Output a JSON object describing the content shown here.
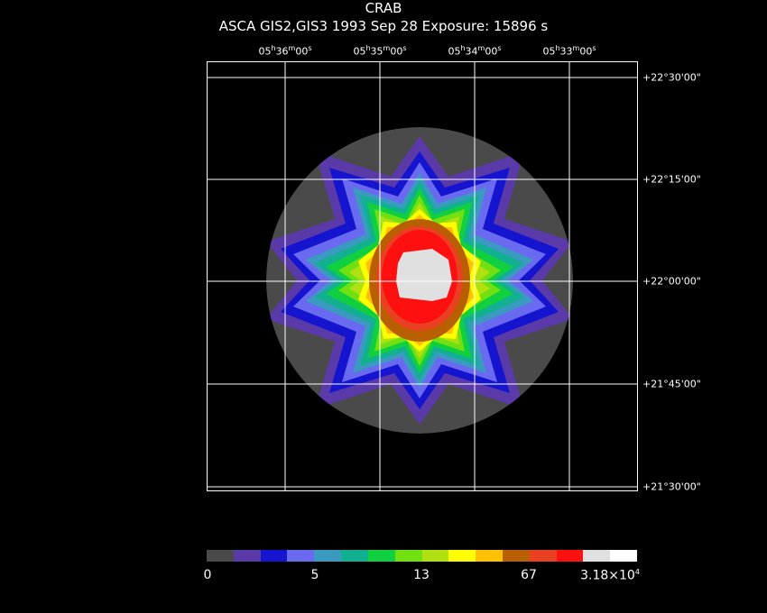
{
  "header": {
    "title": "CRAB",
    "subtitle": "ASCA GIS2,GIS3    1993 Sep 28    Exposure: 15896 s"
  },
  "axes": {
    "ra_labels": [
      {
        "h": "05",
        "m": "36",
        "s": "00"
      },
      {
        "h": "05",
        "m": "35",
        "s": "00"
      },
      {
        "h": "05",
        "m": "34",
        "s": "00"
      },
      {
        "h": "05",
        "m": "33",
        "s": "00"
      }
    ],
    "dec_labels": [
      "+22°30'00\"",
      "+22°15'00\"",
      "+22°00'00\"",
      "+21°45'00\"",
      "+21°30'00\""
    ]
  },
  "colorbar": {
    "colors": [
      "#4a4a4a",
      "#5a3aa8",
      "#1515d0",
      "#6a6af0",
      "#3a9abf",
      "#10b090",
      "#10d040",
      "#70e010",
      "#b0e010",
      "#ffff00",
      "#ffc000",
      "#b86000",
      "#e84020",
      "#ff1010",
      "#e0e0e0",
      "#ffffff"
    ],
    "labels": [
      "0",
      "5",
      "13",
      "67"
    ],
    "max_label": "3.18×10",
    "max_exp": "4"
  }
}
